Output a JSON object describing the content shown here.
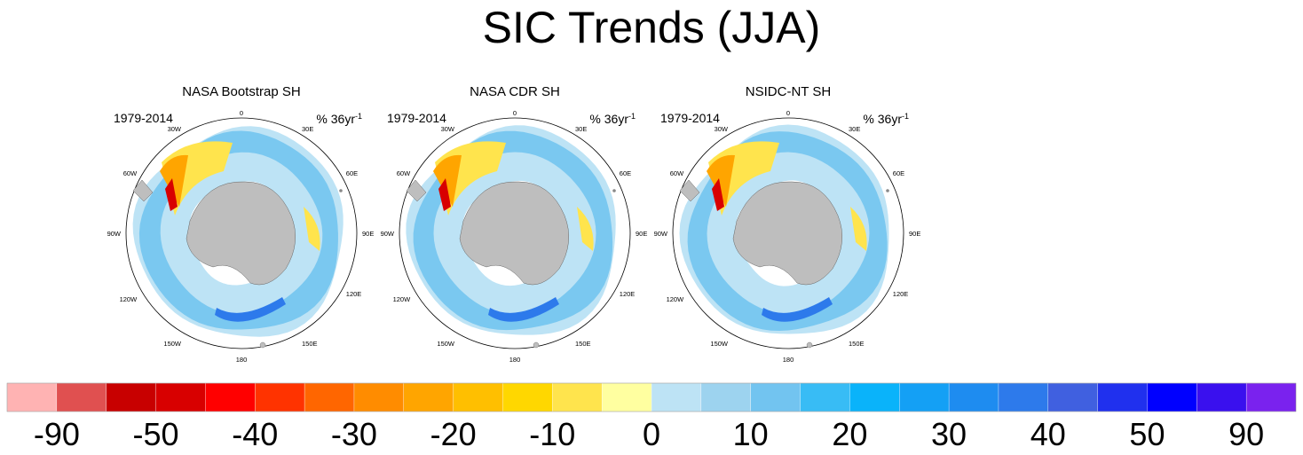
{
  "title": "SIC Trends (JJA)",
  "panels": [
    {
      "title": "NASA Bootstrap SH",
      "period": "1979-2014",
      "unit": "% 36yr",
      "unit_exp": "-1"
    },
    {
      "title": "NASA CDR SH",
      "period": "1979-2014",
      "unit": "% 36yr",
      "unit_exp": "-1"
    },
    {
      "title": "NSIDC-NT SH",
      "period": "1979-2014",
      "unit": "% 36yr",
      "unit_exp": "-1"
    }
  ],
  "longitude_labels": [
    "0",
    "30E",
    "60E",
    "90E",
    "120E",
    "150E",
    "180",
    "150W",
    "120W",
    "90W",
    "60W",
    "30W"
  ],
  "colorbar": {
    "colors": [
      "#ffb3b3",
      "#e05050",
      "#c80000",
      "#d80000",
      "#ff0000",
      "#ff3300",
      "#ff6600",
      "#ff8c00",
      "#ffa500",
      "#ffbf00",
      "#ffd700",
      "#ffe44d",
      "#ffffa0",
      "#bde3f5",
      "#9dd3ef",
      "#72c4f0",
      "#38bcf5",
      "#0ab3fa",
      "#14a0f5",
      "#1e8cf0",
      "#2d7aeb",
      "#4060e0",
      "#2030ee",
      "#0000ff",
      "#3a10ee",
      "#7a22ee"
    ],
    "tick_labels": [
      "-90",
      "-50",
      "-40",
      "-30",
      "-20",
      "-10",
      "0",
      "10",
      "20",
      "30",
      "40",
      "50",
      "90"
    ]
  }
}
